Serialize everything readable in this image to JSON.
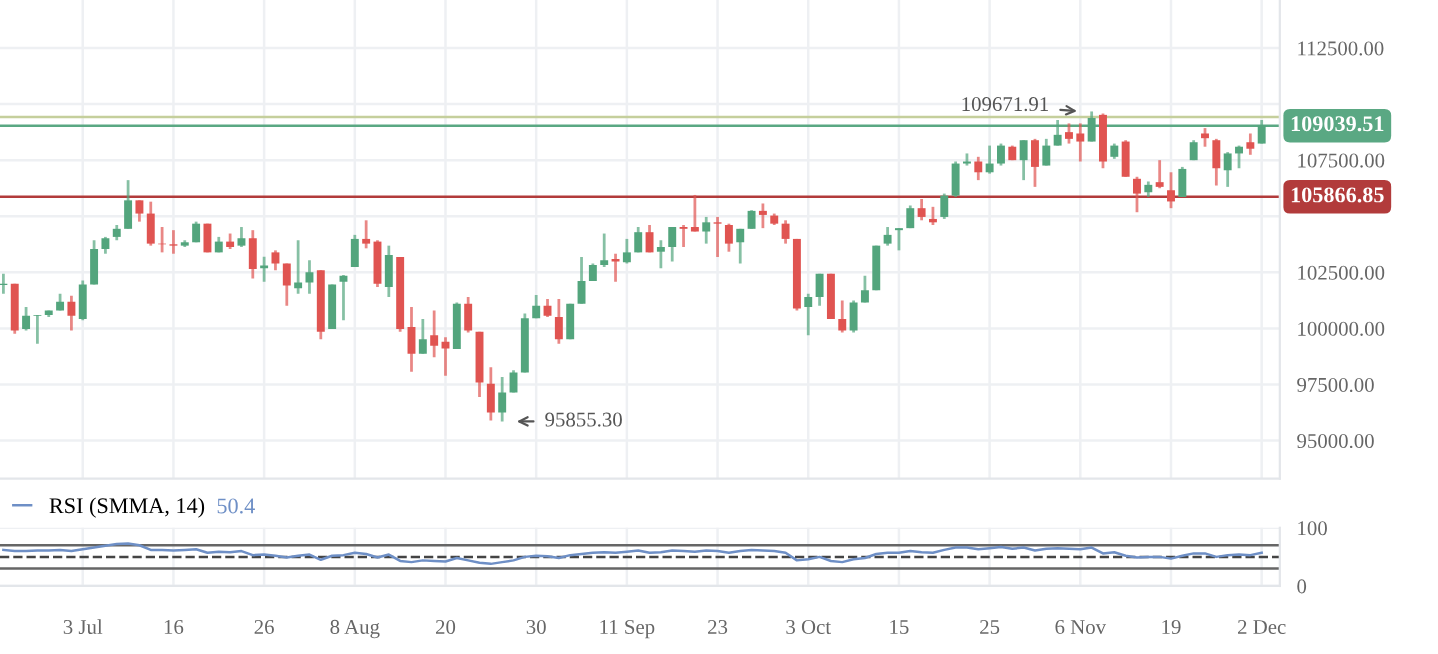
{
  "chart_data": [
    {
      "type": "candlestick",
      "tick_labels": "y",
      "grid": true,
      "categories": [
        null,
        null,
        null,
        null,
        null,
        null,
        null,
        null,
        null,
        null,
        null,
        null,
        null,
        null,
        null,
        null,
        null,
        null,
        null,
        null,
        null,
        null,
        null,
        null,
        null,
        null,
        null,
        null,
        null,
        null,
        null,
        null,
        null,
        null,
        null,
        null,
        null,
        null,
        null,
        null,
        null,
        null,
        null,
        null,
        null,
        null,
        null,
        null,
        null,
        null,
        null,
        null,
        null,
        null,
        null,
        null,
        null,
        null,
        null,
        null,
        null,
        null,
        null,
        null,
        null,
        null,
        null,
        null,
        null,
        null,
        null,
        null,
        null,
        null,
        null,
        null,
        null,
        null,
        null,
        null,
        null,
        null,
        null,
        null,
        null,
        null,
        null,
        null,
        null,
        null,
        null,
        null,
        null,
        null,
        null,
        null,
        null,
        null,
        null,
        null,
        null,
        null,
        null,
        null,
        null,
        null,
        null,
        null,
        null,
        null,
        null,
        null
      ],
      "series": [
        {
          "colors": [
            "#53a57d",
            "#e05451",
            "#53a57d",
            "#53a57d",
            "#53a57d",
            "#53a57d",
            "#e05451",
            "#53a57d",
            "#53a57d",
            "#53a57d",
            "#53a57d",
            "#53a57d",
            "#e05451",
            "#e05451",
            "#e05451",
            "#e05451",
            "#53a57d",
            "#53a57d",
            "#e05451",
            "#53a57d",
            "#e05451",
            "#53a57d",
            "#e05451",
            "#53a57d",
            "#e05451",
            "#e05451",
            "#53a57d",
            "#53a57d",
            "#e05451",
            "#53a57d",
            "#53a57d",
            "#53a57d",
            "#e05451",
            "#e05451",
            "#53a57d",
            "#e05451",
            "#e05451",
            "#53a57d",
            "#e05451",
            "#e05451",
            "#53a57d",
            "#e05451",
            "#e05451",
            "#e05451",
            "#53a57d",
            "#53a57d",
            "#53a57d",
            "#53a57d",
            "#e05451",
            "#e05451",
            "#53a57d",
            "#53a57d",
            "#53a57d",
            "#53a57d",
            "#e05451",
            "#53a57d",
            "#53a57d",
            "#e05451",
            "#53a57d",
            "#53a57d",
            "#e05451",
            "#e05451",
            "#53a57d",
            "#e05451",
            "#e05451",
            "#53a57d",
            "#53a57d",
            "#e05451",
            "#e05451",
            "#e05451",
            "#e05451",
            "#53a57d",
            "#53a57d",
            "#e05451",
            "#e05451",
            "#53a57d",
            "#53a57d",
            "#53a57d",
            "#53a57d",
            "#53a57d",
            "#53a57d",
            "#e05451",
            "#e05451",
            "#53a57d",
            "#53a57d",
            "#53a57d",
            "#e05451",
            "#53a57d",
            "#53a57d",
            "#e05451",
            "#53a57d",
            "#e05451",
            "#53a57d",
            "#53a57d",
            "#e05451",
            "#e05451",
            "#53a57d",
            "#e05451",
            "#53a57d",
            "#e05451",
            "#e05451",
            "#53a57d",
            "#e05451",
            "#e05451",
            "#53a57d",
            "#53a57d",
            "#e05451",
            "#e05451",
            "#53a57d",
            "#53a57d",
            "#e05451",
            "#53a57d"
          ],
          "ohlc": [
            [
              101940,
              102440,
              101550,
              101990
            ],
            [
              101990,
              101990,
              99760,
              99910
            ],
            [
              99970,
              100950,
              99910,
              100570
            ],
            [
              100570,
              100600,
              99320,
              100600
            ],
            [
              100600,
              100800,
              100510,
              100800
            ],
            [
              100800,
              101550,
              100800,
              101190
            ],
            [
              101190,
              101460,
              99910,
              100570
            ],
            [
              100420,
              102140,
              100360,
              101960
            ],
            [
              101960,
              103930,
              101960,
              103540
            ],
            [
              103540,
              104080,
              103330,
              104020
            ],
            [
              104080,
              104610,
              103930,
              104440
            ],
            [
              104440,
              106610,
              104440,
              105710
            ],
            [
              105710,
              105710,
              104760,
              105120
            ],
            [
              105120,
              105650,
              103690,
              103780
            ],
            [
              103780,
              104520,
              103390,
              103750
            ],
            [
              103750,
              104380,
              103330,
              103690
            ],
            [
              103690,
              103930,
              103630,
              103840
            ],
            [
              103840,
              104760,
              103840,
              104670
            ],
            [
              104670,
              104670,
              103390,
              103390
            ],
            [
              103390,
              104080,
              103390,
              103870
            ],
            [
              103870,
              104230,
              103540,
              103630
            ],
            [
              103690,
              104520,
              103630,
              104020
            ],
            [
              104020,
              104380,
              102230,
              102650
            ],
            [
              102680,
              103190,
              102080,
              102800
            ],
            [
              103390,
              103480,
              102590,
              102890
            ],
            [
              102890,
              102890,
              101010,
              101910
            ],
            [
              101790,
              103930,
              101550,
              102050
            ],
            [
              102050,
              103040,
              101550,
              102500
            ],
            [
              102590,
              102590,
              99520,
              99850
            ],
            [
              99970,
              101960,
              99970,
              101960
            ],
            [
              102080,
              102380,
              100360,
              102350
            ],
            [
              102740,
              104170,
              102740,
              103990
            ],
            [
              103990,
              104820,
              103570,
              103780
            ],
            [
              103870,
              103930,
              101850,
              101990
            ],
            [
              101850,
              103690,
              101400,
              103270
            ],
            [
              103180,
              103180,
              99850,
              99970
            ],
            [
              100060,
              100950,
              98070,
              98870
            ],
            [
              98870,
              100420,
              98870,
              99520
            ],
            [
              99700,
              100800,
              98720,
              99230
            ],
            [
              99410,
              99610,
              97890,
              99110
            ],
            [
              99080,
              101160,
              99080,
              101100
            ],
            [
              101100,
              101400,
              99820,
              99910
            ],
            [
              99850,
              99850,
              96940,
              97590
            ],
            [
              97530,
              98270,
              95900,
              96250
            ],
            [
              96250,
              97830,
              95855.3,
              97140
            ],
            [
              97140,
              98130,
              97140,
              98040
            ],
            [
              98040,
              100660,
              98040,
              100450
            ],
            [
              100450,
              101490,
              100450,
              101010
            ],
            [
              101010,
              101310,
              100510,
              100570
            ],
            [
              100510,
              101310,
              99320,
              99520
            ],
            [
              99520,
              101100,
              99520,
              101100
            ],
            [
              101100,
              103180,
              101100,
              102110
            ],
            [
              102110,
              102890,
              102110,
              102830
            ],
            [
              102830,
              104230,
              102740,
              103040
            ],
            [
              103100,
              103330,
              102080,
              102980
            ],
            [
              102950,
              103990,
              102890,
              103390
            ],
            [
              103390,
              104520,
              103390,
              104290
            ],
            [
              104290,
              104610,
              103390,
              103390
            ],
            [
              103420,
              103930,
              102680,
              103630
            ],
            [
              103630,
              104520,
              102980,
              104520
            ],
            [
              104520,
              104610,
              103630,
              104440
            ],
            [
              104520,
              105950,
              104320,
              104320
            ],
            [
              104320,
              104970,
              103780,
              104730
            ],
            [
              104730,
              104970,
              103180,
              104670
            ],
            [
              104610,
              104670,
              103420,
              103780
            ],
            [
              103840,
              104440,
              102890,
              104440
            ],
            [
              104440,
              105270,
              104440,
              105240
            ],
            [
              105240,
              105570,
              104470,
              105060
            ],
            [
              105030,
              105120,
              104610,
              104670
            ],
            [
              104670,
              104820,
              103780,
              103990
            ],
            [
              103990,
              103990,
              100800,
              100890
            ],
            [
              100950,
              101550,
              99700,
              101400
            ],
            [
              101400,
              102440,
              101010,
              102440
            ],
            [
              102440,
              102440,
              100420,
              100420
            ],
            [
              100420,
              101250,
              99820,
              99910
            ],
            [
              99910,
              101250,
              99820,
              101160
            ],
            [
              101160,
              102350,
              101160,
              101700
            ],
            [
              101700,
              103690,
              101700,
              103690
            ],
            [
              103780,
              104520,
              103690,
              104170
            ],
            [
              104380,
              104470,
              103480,
              104470
            ],
            [
              104470,
              105480,
              104470,
              105360
            ],
            [
              105360,
              105770,
              104820,
              104970
            ],
            [
              104880,
              105420,
              104610,
              104730
            ],
            [
              104970,
              106010,
              104880,
              105920
            ],
            [
              105920,
              107440,
              105860,
              107350
            ],
            [
              107350,
              107800,
              107260,
              107440
            ],
            [
              107440,
              107650,
              106610,
              106960
            ],
            [
              106960,
              108150,
              106900,
              107350
            ],
            [
              107350,
              108240,
              107260,
              108150
            ],
            [
              108100,
              108150,
              107500,
              107500
            ],
            [
              107500,
              108390,
              106610,
              108390
            ],
            [
              108390,
              108450,
              106310,
              107200
            ],
            [
              107260,
              108450,
              107260,
              108150
            ],
            [
              108150,
              109290,
              108150,
              108630
            ],
            [
              108750,
              109140,
              108240,
              108450
            ],
            [
              108690,
              109140,
              107440,
              108330
            ],
            [
              108330,
              109671.91,
              108330,
              109380
            ],
            [
              109520,
              109580,
              107140,
              107440
            ],
            [
              107650,
              108240,
              107560,
              108150
            ],
            [
              108330,
              108390,
              106760,
              106760
            ],
            [
              106670,
              106760,
              105180,
              106010
            ],
            [
              106070,
              106550,
              105860,
              106400
            ],
            [
              106520,
              107500,
              106250,
              106310
            ],
            [
              106160,
              106960,
              105360,
              105660
            ],
            [
              105860,
              107200,
              105860,
              107110
            ],
            [
              107500,
              108390,
              107500,
              108300
            ],
            [
              108690,
              108930,
              108100,
              108480
            ],
            [
              108390,
              108450,
              106370,
              107140
            ],
            [
              107050,
              107860,
              106310,
              107800
            ],
            [
              107800,
              108150,
              107140,
              108100
            ],
            [
              108300,
              108690,
              107740,
              108010
            ],
            [
              108240,
              109290,
              108240,
              109039.51
            ]
          ]
        }
      ],
      "ylim": [
        93300,
        114640
      ],
      "yticks": [
        {
          "value": 95000,
          "label": "95000.00"
        },
        {
          "value": 97500,
          "label": "97500.00"
        },
        {
          "value": 100000,
          "label": "100000.00"
        },
        {
          "value": 102500,
          "label": "102500.00"
        },
        {
          "value": 105000,
          "label": null
        },
        {
          "value": 107500,
          "label": "107500.00"
        },
        {
          "value": 110000,
          "label": null
        },
        {
          "value": 112500,
          "label": "112500.00"
        }
      ],
      "ref_lines": [
        {
          "axis": "y",
          "value": 105866.85,
          "label": "105866.85",
          "color": "#b23b3b"
        },
        {
          "axis": "y",
          "value": 109430,
          "label": null,
          "color": "#c5cf9c"
        },
        {
          "axis": "y",
          "value": 109039.51,
          "label": "109039.51",
          "color": "#5aa883"
        }
      ],
      "annotations": [
        {
          "text": "109671.91",
          "y": 109671.91
        },
        "95855.30"
      ]
    },
    {
      "type": "line",
      "grid": true,
      "legend": "top left",
      "categories": [
        null,
        null,
        null,
        null,
        null,
        null,
        null,
        "3 Jul",
        null,
        null,
        null,
        null,
        null,
        null,
        null,
        "16",
        null,
        null,
        null,
        null,
        null,
        null,
        null,
        "26",
        null,
        null,
        null,
        null,
        null,
        null,
        null,
        "8 Aug",
        null,
        null,
        null,
        null,
        null,
        null,
        null,
        "20",
        null,
        null,
        null,
        null,
        null,
        null,
        null,
        "30",
        null,
        null,
        null,
        null,
        null,
        null,
        null,
        "11 Sep",
        null,
        null,
        null,
        null,
        null,
        null,
        null,
        "23",
        null,
        null,
        null,
        null,
        null,
        null,
        null,
        "3 Oct",
        null,
        null,
        null,
        null,
        null,
        null,
        null,
        "15",
        null,
        null,
        null,
        null,
        null,
        null,
        null,
        "25",
        null,
        null,
        null,
        null,
        null,
        null,
        null,
        "6 Nov",
        null,
        null,
        null,
        null,
        null,
        null,
        null,
        "19",
        null,
        null,
        null,
        null,
        null,
        null,
        null,
        "2 Dec"
      ],
      "series": [
        {
          "name": "RSI (SMMA, 14)",
          "color": "#6e8fc6",
          "values": [
            62,
            60,
            60,
            61,
            61,
            62,
            60,
            63,
            66,
            69,
            72,
            73,
            70,
            62,
            62,
            61,
            62,
            63,
            57,
            59,
            58,
            60,
            53,
            54,
            52,
            49,
            52,
            54,
            45,
            52,
            53,
            57,
            55,
            49,
            54,
            43,
            41,
            44,
            43,
            42,
            48,
            44,
            40,
            38,
            41,
            44,
            50,
            52,
            51,
            48,
            53,
            55,
            57,
            58,
            57,
            59,
            61,
            57,
            58,
            61,
            60,
            59,
            61,
            60,
            57,
            60,
            62,
            61,
            60,
            57,
            44,
            46,
            50,
            43,
            41,
            46,
            48,
            55,
            57,
            57,
            60,
            58,
            57,
            62,
            66,
            66,
            63,
            65,
            67,
            64,
            66,
            61,
            64,
            65,
            64,
            63,
            66,
            56,
            58,
            52,
            49,
            50,
            50,
            47,
            52,
            56,
            56,
            50,
            53,
            54,
            53,
            57
          ]
        }
      ],
      "ylim": [
        0,
        100
      ],
      "yticks": [
        0,
        100
      ],
      "ref_lines": [
        {
          "axis": "y",
          "value": 70,
          "label": null,
          "color": "#666666",
          "line_style": "solid"
        },
        {
          "axis": "y",
          "value": 50,
          "label": null,
          "color": "#444444",
          "line_style": "dashed"
        },
        {
          "axis": "y",
          "value": 30,
          "label": null,
          "color": "#666666",
          "line_style": "solid"
        }
      ],
      "annotations": [
        "50.4"
      ]
    }
  ]
}
